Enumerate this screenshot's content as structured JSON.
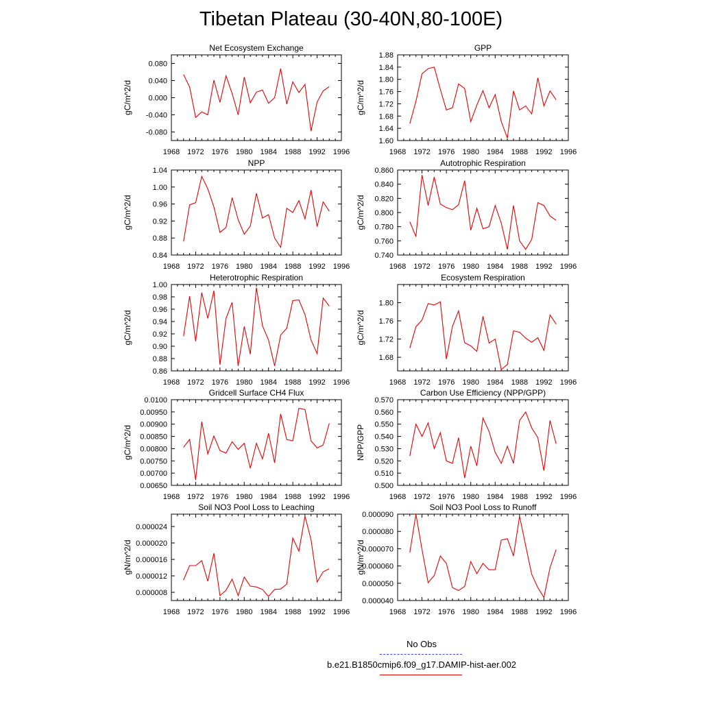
{
  "page": {
    "title": "Tibetan Plateau (30-40N,80-100E)"
  },
  "colors": {
    "model": "#e60000",
    "obs": "#3c3cff",
    "axis": "#000000"
  },
  "legend": {
    "obs_label": "No Obs",
    "model_label": "b.e21.B1850cmip6.f09_g17.DAMIP-hist-aer.002"
  },
  "chart_data": [
    {
      "type": "line",
      "title": "Net Ecosystem Exchange",
      "ylabel": "gC/m^2/d",
      "xlim": [
        1968,
        1996
      ],
      "ylim": [
        -0.1,
        0.1
      ],
      "yticks": [
        -0.08,
        -0.04,
        0.0,
        0.04,
        0.08
      ],
      "yticklabels": [
        "-0.080",
        "-0.040",
        "0.000",
        "0.040",
        "0.080"
      ],
      "xticks": [
        1968,
        1972,
        1976,
        1980,
        1984,
        1988,
        1992,
        1996
      ],
      "x": [
        1970,
        1971,
        1972,
        1973,
        1974,
        1975,
        1976,
        1977,
        1978,
        1979,
        1980,
        1981,
        1982,
        1983,
        1984,
        1985,
        1986,
        1987,
        1988,
        1989,
        1990,
        1991,
        1992,
        1993,
        1994
      ],
      "values": [
        0.054,
        0.025,
        -0.046,
        -0.033,
        -0.04,
        0.041,
        -0.011,
        0.051,
        0.01,
        -0.04,
        0.048,
        -0.012,
        0.013,
        0.018,
        -0.013,
        0.0,
        0.068,
        -0.015,
        0.037,
        0.012,
        0.031,
        -0.078,
        -0.01,
        0.016,
        0.026
      ]
    },
    {
      "type": "line",
      "title": "GPP",
      "ylabel": "gC/m^2/d",
      "xlim": [
        1968,
        1996
      ],
      "ylim": [
        1.6,
        1.88
      ],
      "yticks": [
        1.6,
        1.64,
        1.68,
        1.72,
        1.76,
        1.8,
        1.84,
        1.88
      ],
      "yticklabels": [
        "1.60",
        "1.64",
        "1.68",
        "1.72",
        "1.76",
        "1.80",
        "1.84",
        "1.88"
      ],
      "xticks": [
        1968,
        1972,
        1976,
        1980,
        1984,
        1988,
        1992,
        1996
      ],
      "x": [
        1970,
        1971,
        1972,
        1973,
        1974,
        1975,
        1976,
        1977,
        1978,
        1979,
        1980,
        1981,
        1982,
        1983,
        1984,
        1985,
        1986,
        1987,
        1988,
        1989,
        1990,
        1991,
        1992,
        1993,
        1994
      ],
      "values": [
        1.655,
        1.728,
        1.818,
        1.835,
        1.84,
        1.767,
        1.7,
        1.707,
        1.785,
        1.77,
        1.662,
        1.716,
        1.763,
        1.707,
        1.75,
        1.662,
        1.608,
        1.762,
        1.7,
        1.713,
        1.687,
        1.805,
        1.713,
        1.762,
        1.733
      ]
    },
    {
      "type": "line",
      "title": "NPP",
      "ylabel": "gC/m^2/d",
      "xlim": [
        1968,
        1996
      ],
      "ylim": [
        0.84,
        1.04
      ],
      "yticks": [
        0.84,
        0.88,
        0.92,
        0.96,
        1.0,
        1.04
      ],
      "yticklabels": [
        "0.84",
        "0.88",
        "0.92",
        "0.96",
        "1.00",
        "1.04"
      ],
      "xticks": [
        1968,
        1972,
        1976,
        1980,
        1984,
        1988,
        1992,
        1996
      ],
      "x": [
        1970,
        1971,
        1972,
        1973,
        1974,
        1975,
        1976,
        1977,
        1978,
        1979,
        1980,
        1981,
        1982,
        1983,
        1984,
        1985,
        1986,
        1987,
        1988,
        1989,
        1990,
        1991,
        1992,
        1993,
        1994
      ],
      "values": [
        0.872,
        0.958,
        0.963,
        1.025,
        0.996,
        0.953,
        0.893,
        0.905,
        0.975,
        0.923,
        0.889,
        0.908,
        0.985,
        0.927,
        0.935,
        0.88,
        0.858,
        0.95,
        0.94,
        0.968,
        0.925,
        0.993,
        0.907,
        0.965,
        0.943
      ]
    },
    {
      "type": "line",
      "title": "Autotrophic Respiration",
      "ylabel": "gC/m^2/d",
      "xlim": [
        1968,
        1996
      ],
      "ylim": [
        0.74,
        0.86
      ],
      "yticks": [
        0.74,
        0.76,
        0.78,
        0.8,
        0.82,
        0.84,
        0.86
      ],
      "yticklabels": [
        "0.740",
        "0.760",
        "0.780",
        "0.800",
        "0.820",
        "0.840",
        "0.860"
      ],
      "xticks": [
        1968,
        1972,
        1976,
        1980,
        1984,
        1988,
        1992,
        1996
      ],
      "x": [
        1970,
        1971,
        1972,
        1973,
        1974,
        1975,
        1976,
        1977,
        1978,
        1979,
        1980,
        1981,
        1982,
        1983,
        1984,
        1985,
        1986,
        1987,
        1988,
        1989,
        1990,
        1991,
        1992,
        1993,
        1994
      ],
      "values": [
        0.787,
        0.766,
        0.853,
        0.81,
        0.85,
        0.812,
        0.807,
        0.804,
        0.811,
        0.845,
        0.775,
        0.806,
        0.777,
        0.78,
        0.81,
        0.785,
        0.748,
        0.81,
        0.76,
        0.748,
        0.762,
        0.814,
        0.81,
        0.795,
        0.789
      ]
    },
    {
      "type": "line",
      "title": "Heterotrophic Respiration",
      "ylabel": "gC/m^2/d",
      "xlim": [
        1968,
        1996
      ],
      "ylim": [
        0.86,
        1.0
      ],
      "yticks": [
        0.86,
        0.88,
        0.9,
        0.92,
        0.94,
        0.96,
        0.98,
        1.0
      ],
      "yticklabels": [
        "0.86",
        "0.88",
        "0.90",
        "0.92",
        "0.94",
        "0.96",
        "0.98",
        "1.00"
      ],
      "xticks": [
        1968,
        1972,
        1976,
        1980,
        1984,
        1988,
        1992,
        1996
      ],
      "x": [
        1970,
        1971,
        1972,
        1973,
        1974,
        1975,
        1976,
        1977,
        1978,
        1979,
        1980,
        1981,
        1982,
        1983,
        1984,
        1985,
        1986,
        1987,
        1988,
        1989,
        1990,
        1991,
        1992,
        1993,
        1994
      ],
      "values": [
        0.916,
        0.981,
        0.908,
        0.987,
        0.945,
        0.99,
        0.87,
        0.945,
        0.971,
        0.868,
        0.932,
        0.887,
        0.995,
        0.933,
        0.91,
        0.868,
        0.918,
        0.929,
        0.974,
        0.975,
        0.951,
        0.91,
        0.888,
        0.978,
        0.965
      ]
    },
    {
      "type": "line",
      "title": "Ecosystem Respiration",
      "ylabel": "gC/m^2/d",
      "xlim": [
        1968,
        1996
      ],
      "ylim": [
        1.65,
        1.84
      ],
      "yticks": [
        1.68,
        1.72,
        1.76,
        1.8
      ],
      "yticklabels": [
        "1.68",
        "1.72",
        "1.76",
        "1.80"
      ],
      "xticks": [
        1968,
        1972,
        1976,
        1980,
        1984,
        1988,
        1992,
        1996
      ],
      "x": [
        1970,
        1971,
        1972,
        1973,
        1974,
        1975,
        1976,
        1977,
        1978,
        1979,
        1980,
        1981,
        1982,
        1983,
        1984,
        1985,
        1986,
        1987,
        1988,
        1989,
        1990,
        1991,
        1992,
        1993,
        1994
      ],
      "values": [
        1.7,
        1.747,
        1.762,
        1.798,
        1.795,
        1.802,
        1.676,
        1.748,
        1.782,
        1.712,
        1.705,
        1.693,
        1.77,
        1.711,
        1.72,
        1.653,
        1.664,
        1.738,
        1.735,
        1.722,
        1.713,
        1.723,
        1.695,
        1.773,
        1.753
      ]
    },
    {
      "type": "line",
      "title": "Gridcell Surface CH4 Flux",
      "ylabel": "gC/m^2/d",
      "xlim": [
        1968,
        1996
      ],
      "ylim": [
        0.0065,
        0.01
      ],
      "yticks": [
        0.0065,
        0.007,
        0.0075,
        0.008,
        0.0085,
        0.009,
        0.0095,
        0.01
      ],
      "yticklabels": [
        "0.00650",
        "0.00700",
        "0.00750",
        "0.00800",
        "0.00850",
        "0.00900",
        "0.00950",
        "0.0100"
      ],
      "xticks": [
        1968,
        1972,
        1976,
        1980,
        1984,
        1988,
        1992,
        1996
      ],
      "x": [
        1970,
        1971,
        1972,
        1973,
        1974,
        1975,
        1976,
        1977,
        1978,
        1979,
        1980,
        1981,
        1982,
        1983,
        1984,
        1985,
        1986,
        1987,
        1988,
        1989,
        1990,
        1991,
        1992,
        1993,
        1994
      ],
      "values": [
        0.00805,
        0.00838,
        0.00672,
        0.0091,
        0.00778,
        0.00852,
        0.00792,
        0.00782,
        0.00828,
        0.00797,
        0.00822,
        0.0072,
        0.00822,
        0.00758,
        0.00863,
        0.00742,
        0.00942,
        0.00837,
        0.00832,
        0.00965,
        0.0096,
        0.00832,
        0.00803,
        0.00815,
        0.00903
      ]
    },
    {
      "type": "line",
      "title": "Carbon Use Efficiency (NPP/GPP)",
      "ylabel": "NPP/GPP",
      "xlim": [
        1968,
        1996
      ],
      "ylim": [
        0.5,
        0.57
      ],
      "yticks": [
        0.5,
        0.51,
        0.52,
        0.53,
        0.54,
        0.55,
        0.56,
        0.57
      ],
      "yticklabels": [
        "0.500",
        "0.510",
        "0.520",
        "0.530",
        "0.540",
        "0.550",
        "0.560",
        "0.570"
      ],
      "xticks": [
        1968,
        1972,
        1976,
        1980,
        1984,
        1988,
        1992,
        1996
      ],
      "x": [
        1970,
        1971,
        1972,
        1973,
        1974,
        1975,
        1976,
        1977,
        1978,
        1979,
        1980,
        1981,
        1982,
        1983,
        1984,
        1985,
        1986,
        1987,
        1988,
        1989,
        1990,
        1991,
        1992,
        1993,
        1994
      ],
      "values": [
        0.524,
        0.55,
        0.54,
        0.551,
        0.53,
        0.543,
        0.52,
        0.518,
        0.539,
        0.506,
        0.532,
        0.516,
        0.555,
        0.544,
        0.527,
        0.518,
        0.532,
        0.518,
        0.553,
        0.56,
        0.547,
        0.539,
        0.512,
        0.553,
        0.534
      ]
    },
    {
      "type": "line",
      "title": "Soil NO3 Pool Loss to Leaching",
      "ylabel": "gN/m^2/d",
      "xlim": [
        1968,
        1996
      ],
      "ylim": [
        6e-06,
        2.7e-05
      ],
      "yticks": [
        8e-06,
        1.2e-05,
        1.6e-05,
        2e-05,
        2.4e-05
      ],
      "yticklabels": [
        "0.000008",
        "0.000012",
        "0.000016",
        "0.000020",
        "0.000024"
      ],
      "xticks": [
        1968,
        1972,
        1976,
        1980,
        1984,
        1988,
        1992,
        1996
      ],
      "x": [
        1970,
        1971,
        1972,
        1973,
        1974,
        1975,
        1976,
        1977,
        1978,
        1979,
        1980,
        1981,
        1982,
        1983,
        1984,
        1985,
        1986,
        1987,
        1988,
        1989,
        1990,
        1991,
        1992,
        1993,
        1994
      ],
      "values": [
        1.1e-05,
        1.45e-05,
        1.45e-05,
        1.57e-05,
        1.07e-05,
        1.75e-05,
        7.2e-06,
        8.5e-06,
        1.12e-05,
        7.2e-06,
        1.17e-05,
        9.5e-06,
        9.3e-06,
        8.7e-06,
        7e-06,
        8.7e-06,
        8.8e-06,
        1e-05,
        2.12e-05,
        1.8e-05,
        2.65e-05,
        2.08e-05,
        1.05e-05,
        1.3e-05,
        1.37e-05
      ]
    },
    {
      "type": "line",
      "title": "Soil NO3 Pool Loss to Runoff",
      "ylabel": "gN/m^2/d",
      "xlim": [
        1968,
        1996
      ],
      "ylim": [
        4e-05,
        9e-05
      ],
      "yticks": [
        4e-05,
        5e-05,
        6e-05,
        7e-05,
        8e-05,
        9e-05
      ],
      "yticklabels": [
        "0.000040",
        "0.000050",
        "0.000060",
        "0.000070",
        "0.000080",
        "0.000090"
      ],
      "xticks": [
        1968,
        1972,
        1976,
        1980,
        1984,
        1988,
        1992,
        1996
      ],
      "x": [
        1970,
        1971,
        1972,
        1973,
        1974,
        1975,
        1976,
        1977,
        1978,
        1979,
        1980,
        1981,
        1982,
        1983,
        1984,
        1985,
        1986,
        1987,
        1988,
        1989,
        1990,
        1991,
        1992,
        1993,
        1994
      ],
      "values": [
        6.78e-05,
        9e-05,
        6.95e-05,
        5.03e-05,
        5.45e-05,
        6.58e-05,
        6.15e-05,
        4.75e-05,
        4.58e-05,
        4.82e-05,
        6.25e-05,
        5.55e-05,
        6.15e-05,
        5.78e-05,
        5.78e-05,
        7.5e-05,
        7.58e-05,
        6.58e-05,
        8.88e-05,
        7.18e-05,
        5.52e-05,
        4.75e-05,
        4.18e-05,
        5.9e-05,
        6.95e-05
      ]
    }
  ]
}
